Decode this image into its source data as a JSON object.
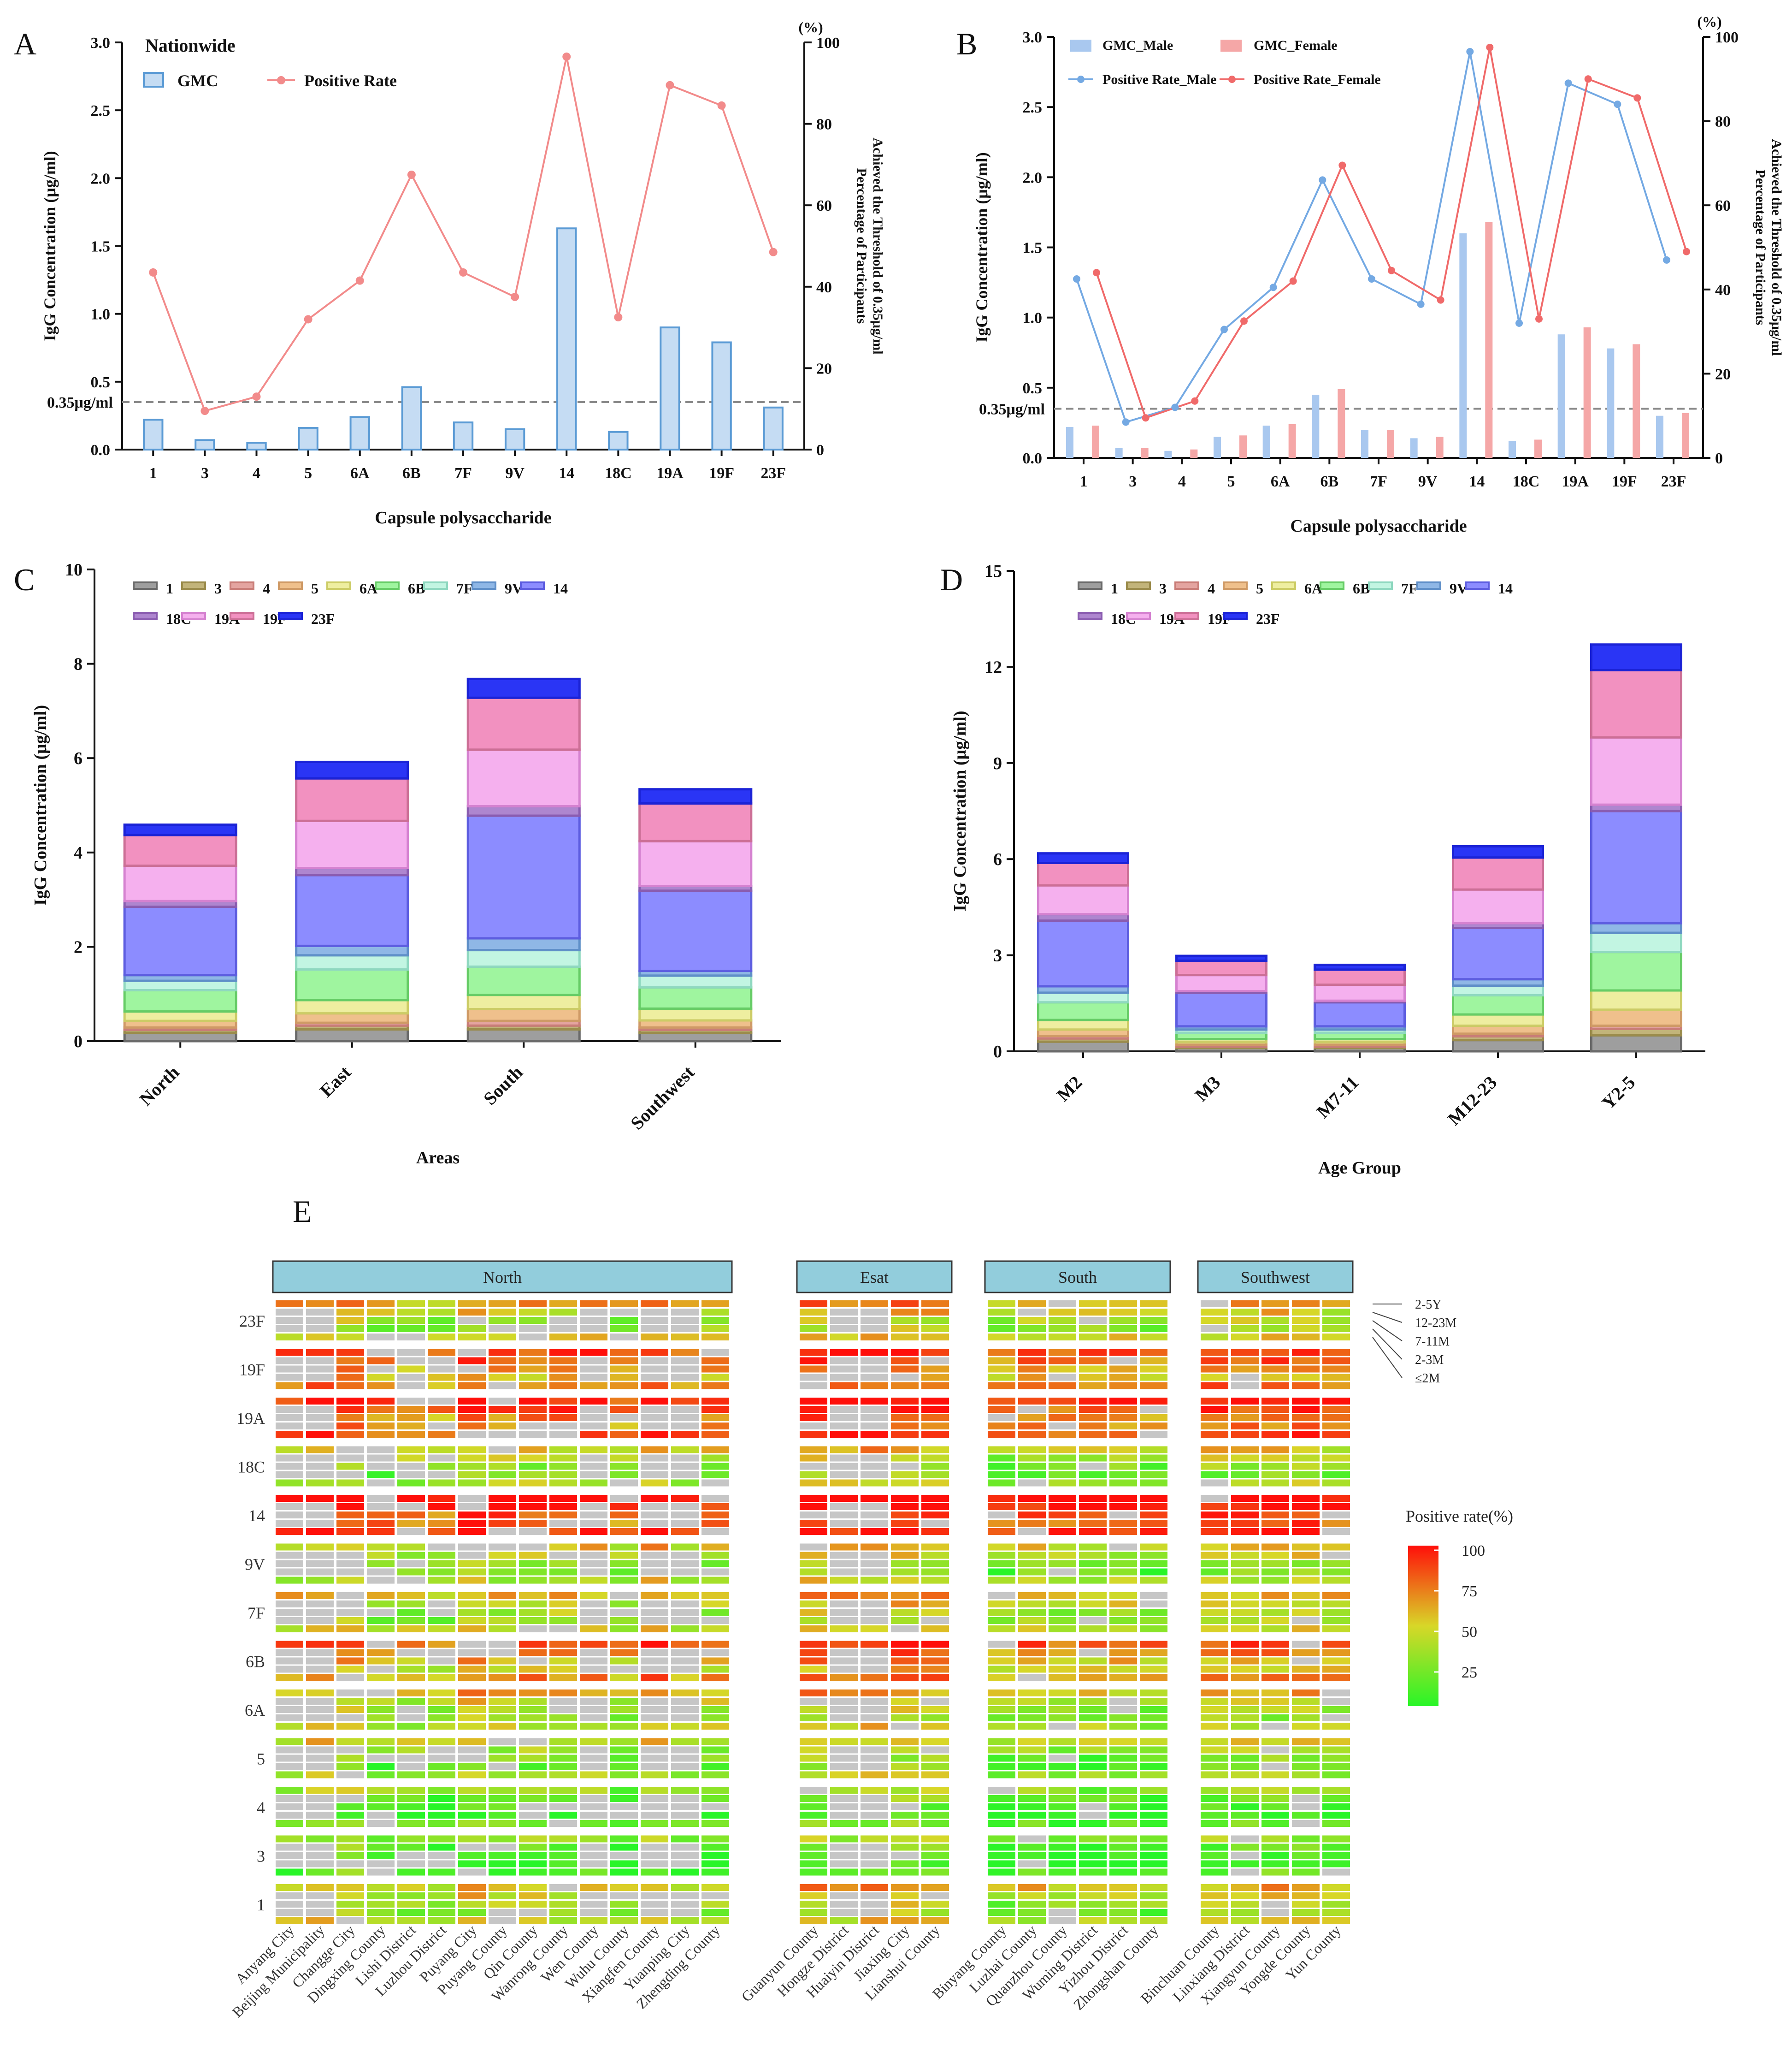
{
  "chart_data": [
    {
      "panel": "A",
      "type": "bar",
      "title": "Nationwide",
      "categories": [
        "1",
        "3",
        "4",
        "5",
        "6A",
        "6B",
        "7F",
        "9V",
        "14",
        "18C",
        "19A",
        "19F",
        "23F"
      ],
      "series": [
        {
          "name": "GMC",
          "axis": "left",
          "values": [
            0.22,
            0.07,
            0.05,
            0.16,
            0.24,
            0.46,
            0.2,
            0.15,
            1.63,
            0.13,
            0.9,
            0.79,
            0.31
          ]
        },
        {
          "name": "Positive Rate",
          "axis": "right",
          "values": [
            43.5,
            9.5,
            13,
            32,
            41.5,
            67.5,
            43.5,
            37.5,
            96.5,
            32.5,
            89.5,
            84.5,
            48.5
          ]
        }
      ],
      "xlabel": "Capsule polysaccharide",
      "ylabel": "IgG Concentration (μg/ml)",
      "ylabel_right": "Percentage of Participants Achieved the Threshold of 0.35μg/ml",
      "right_unit": "(%)",
      "ylim": [
        0,
        3.0
      ],
      "y2lim": [
        0,
        100
      ],
      "yticks": [
        "0.0",
        "0.5",
        "1.0",
        "1.5",
        "2.0",
        "2.5",
        "3.0"
      ],
      "y2ticks": [
        "0",
        "20",
        "40",
        "60",
        "80",
        "100"
      ],
      "threshold": 0.35,
      "threshold_label": "0.35μg/ml"
    },
    {
      "panel": "B",
      "type": "bar",
      "categories": [
        "1",
        "3",
        "4",
        "5",
        "6A",
        "6B",
        "7F",
        "9V",
        "14",
        "18C",
        "19A",
        "19F",
        "23F"
      ],
      "series": [
        {
          "name": "GMC_Male",
          "axis": "left",
          "values": [
            0.22,
            0.07,
            0.05,
            0.15,
            0.23,
            0.45,
            0.2,
            0.14,
            1.6,
            0.12,
            0.88,
            0.78,
            0.3
          ]
        },
        {
          "name": "GMC_Female",
          "axis": "left",
          "values": [
            0.23,
            0.07,
            0.06,
            0.16,
            0.24,
            0.49,
            0.2,
            0.15,
            1.68,
            0.13,
            0.93,
            0.81,
            0.32
          ]
        },
        {
          "name": "Positive Rate_Male",
          "axis": "right",
          "values": [
            42.5,
            8.5,
            12,
            30.5,
            40.5,
            66,
            42.5,
            36.5,
            96.5,
            32,
            89,
            84,
            47
          ]
        },
        {
          "name": "Positive Rate_Female",
          "axis": "right",
          "values": [
            44,
            9.5,
            13.5,
            32.5,
            42,
            69.5,
            44.5,
            37.5,
            97.5,
            33,
            90,
            85.5,
            49
          ]
        }
      ],
      "xlabel": "Capsule polysaccharide",
      "ylabel": "IgG Concentration (μg/ml)",
      "ylabel_right": "Percentage of Participants Achieved the Threshold of 0.35μg/ml",
      "right_unit": "(%)",
      "ylim": [
        0,
        3.0
      ],
      "y2lim": [
        0,
        100
      ],
      "yticks": [
        "0.0",
        "0.5",
        "1.0",
        "1.5",
        "2.0",
        "2.5",
        "3.0"
      ],
      "y2ticks": [
        "0",
        "20",
        "40",
        "60",
        "80",
        "100"
      ],
      "threshold": 0.35,
      "threshold_label": "0.35μg/ml"
    },
    {
      "panel": "C",
      "type": "bar",
      "stacked": true,
      "categories": [
        "North",
        "East",
        "South",
        "Southwest"
      ],
      "series_names": [
        "1",
        "3",
        "4",
        "5",
        "6A",
        "6B",
        "7F",
        "9V",
        "14",
        "18C",
        "19A",
        "19F",
        "23F"
      ],
      "values": [
        [
          0.18,
          0.06,
          0.05,
          0.14,
          0.2,
          0.45,
          0.2,
          0.12,
          1.45,
          0.12,
          0.75,
          0.65,
          0.22
        ],
        [
          0.25,
          0.08,
          0.06,
          0.2,
          0.28,
          0.65,
          0.3,
          0.2,
          1.5,
          0.15,
          1.0,
          0.9,
          0.35
        ],
        [
          0.25,
          0.08,
          0.1,
          0.25,
          0.3,
          0.6,
          0.35,
          0.25,
          2.6,
          0.2,
          1.2,
          1.1,
          0.4
        ],
        [
          0.18,
          0.06,
          0.05,
          0.15,
          0.25,
          0.45,
          0.25,
          0.1,
          1.7,
          0.1,
          0.95,
          0.8,
          0.3
        ]
      ],
      "xlabel": "Areas",
      "ylabel": "IgG Concentration (μg/ml)",
      "ylim": [
        0,
        10
      ],
      "yticks": [
        "0",
        "2",
        "4",
        "6",
        "8",
        "10"
      ]
    },
    {
      "panel": "D",
      "type": "bar",
      "stacked": true,
      "categories": [
        "M2",
        "M3",
        "M7-11",
        "M12-23",
        "Y2-5"
      ],
      "series_names": [
        "1",
        "3",
        "4",
        "5",
        "6A",
        "6B",
        "7F",
        "9V",
        "14",
        "18C",
        "19A",
        "19F",
        "23F"
      ],
      "values": [
        [
          0.3,
          0.1,
          0.08,
          0.2,
          0.3,
          0.55,
          0.3,
          0.2,
          2.05,
          0.2,
          0.9,
          0.7,
          0.3
        ],
        [
          0.1,
          0.05,
          0.05,
          0.08,
          0.1,
          0.2,
          0.1,
          0.1,
          1.05,
          0.05,
          0.5,
          0.45,
          0.15
        ],
        [
          0.1,
          0.05,
          0.05,
          0.08,
          0.1,
          0.2,
          0.1,
          0.1,
          0.75,
          0.05,
          0.5,
          0.47,
          0.15
        ],
        [
          0.35,
          0.12,
          0.08,
          0.25,
          0.35,
          0.6,
          0.3,
          0.2,
          1.6,
          0.15,
          1.05,
          1.0,
          0.35
        ],
        [
          0.5,
          0.2,
          0.1,
          0.5,
          0.6,
          1.2,
          0.6,
          0.3,
          3.5,
          0.2,
          2.1,
          2.1,
          0.8
        ]
      ],
      "xlabel": "Age Group",
      "ylabel": "IgG Concentration (μg/ml)",
      "ylim": [
        0,
        15
      ],
      "yticks": [
        "0",
        "3",
        "6",
        "9",
        "12",
        "15"
      ]
    },
    {
      "panel": "E",
      "type": "heatmap",
      "regions": [
        {
          "name": "North",
          "sites": [
            "Anyang City",
            "Beijing Municipality",
            "Changge City",
            "Dingxing County",
            "Lishi District",
            "Luzhou District",
            "Puyang City",
            "Puyang County",
            "Qin County",
            "Wanrong County",
            "Wen County",
            "Wuhu County",
            "Xiangfen County",
            "Yuanping City",
            "Zhengding County"
          ]
        },
        {
          "name": "Esat",
          "sites": [
            "Guanyun County",
            "Hongze District",
            "Huaiyin District",
            "Jiaxing City",
            "Lianshui County"
          ]
        },
        {
          "name": "South",
          "sites": [
            "Binyang County",
            "Luzhai County",
            "Quanzhou County",
            "Wuming District",
            "Yizhou District",
            "Zhongshan County"
          ]
        },
        {
          "name": "Southwest",
          "sites": [
            "Binchuan County",
            "Linxiang District",
            "Xiangyun County",
            "Yongde County",
            "Yun County"
          ]
        }
      ],
      "serotypes_top_to_bottom": [
        "23F",
        "19F",
        "19A",
        "18C",
        "14",
        "9V",
        "7F",
        "6B",
        "6A",
        "5",
        "4",
        "3",
        "1"
      ],
      "age_groups_top_to_bottom": [
        "2-5Y",
        "12-23M",
        "7-11M",
        "2-3M",
        "≤2M"
      ],
      "colorbar_title": "Positive rate(%)",
      "colorbar_ticks": [
        "100",
        "75",
        "50",
        "25"
      ],
      "range": [
        0,
        100
      ]
    }
  ],
  "legendsAB": {
    "A": [
      "GMC",
      "Positive Rate"
    ],
    "B": [
      "GMC_Male",
      "GMC_Female",
      "Positive Rate_Male",
      "Positive Rate_Female"
    ]
  },
  "colors": {
    "blue_fill": "#c5dcf3",
    "blue_line": "#5b9bd5",
    "pink_line": "#f28b8b",
    "male_bar": "#a9c8ef",
    "female_bar": "#f5a7a7",
    "male_line": "#74a9e3",
    "female_line": "#f06a6a",
    "stack": [
      "#9e9e9e",
      "#c2b47a",
      "#e4a4a0",
      "#efc08c",
      "#eeeea0",
      "#9ff59f",
      "#c2f5e2",
      "#8fb7e6",
      "#8c8cff",
      "#ae86cf",
      "#f5b0ee",
      "#f291c0",
      "#2a35f5"
    ],
    "stack_edge": [
      "#6a6a6a",
      "#9b8c4c",
      "#c97d78",
      "#cf9a66",
      "#cccc66",
      "#66cc66",
      "#8fd8c0",
      "#5f8fc8",
      "#5d5de0",
      "#8a5cb0",
      "#d582d0",
      "#cc6f96",
      "#1b23d6"
    ],
    "header": "#92cddc",
    "grey": "#c6c6c6"
  }
}
